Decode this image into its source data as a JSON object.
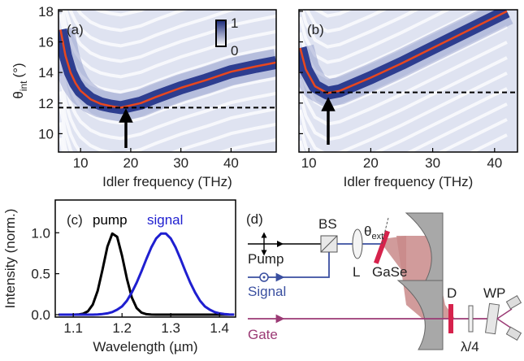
{
  "chart_data": [
    {
      "type": "heatmap",
      "panel_label": "(a)",
      "x_label": "Idler frequency (THz)",
      "y_label": "θ",
      "y_label_sub": "int",
      "y_label_unit": "(°)",
      "x": [
        6,
        7,
        8,
        9,
        10,
        12,
        14,
        16,
        18,
        22,
        25,
        30,
        35,
        40,
        45,
        49
      ],
      "series": [
        {
          "color": "#e8471e",
          "values": [
            16.8,
            15.1,
            14.0,
            13.3,
            12.8,
            12.25,
            11.95,
            11.8,
            11.7,
            12.0,
            12.4,
            13.0,
            13.5,
            14.05,
            14.4,
            14.65
          ]
        }
      ],
      "dashed_line_y": 11.7,
      "xlim": [
        5.6,
        49
      ],
      "ylim": [
        8.8,
        18.1
      ],
      "xticks": [
        10,
        20,
        30,
        40
      ],
      "yticks": [
        10,
        12,
        14,
        16,
        18
      ],
      "colorbar": {
        "max": 1,
        "min": 0
      }
    },
    {
      "type": "heatmap",
      "panel_label": "(b)",
      "x_label": "Idler frequency (THz)",
      "x": [
        8.6,
        9.5,
        11,
        13,
        15,
        20,
        25,
        30,
        35,
        40,
        42
      ],
      "series": [
        {
          "color": "#e8471e",
          "values": [
            15.6,
            14.2,
            13.1,
            12.65,
            12.8,
            13.66,
            14.6,
            15.6,
            16.6,
            17.6,
            18.0
          ]
        }
      ],
      "dashed_line_y": 12.7,
      "xlim": [
        8.4,
        43.7
      ],
      "ylim": [
        8.8,
        18.1
      ],
      "xticks": [
        10,
        20,
        30,
        40
      ],
      "yticks": [
        10,
        12,
        14,
        16,
        18
      ]
    },
    {
      "type": "line",
      "panel_label": "(c)",
      "x_label": "Wavelength (µm)",
      "y_label": "Intensity (norm.)",
      "x": [
        1.07,
        1.08,
        1.09,
        1.1,
        1.11,
        1.12,
        1.13,
        1.14,
        1.15,
        1.16,
        1.17,
        1.18,
        1.19,
        1.2,
        1.21,
        1.22,
        1.23,
        1.24,
        1.25,
        1.26,
        1.27,
        1.28,
        1.29,
        1.3,
        1.31,
        1.32,
        1.33,
        1.34,
        1.35,
        1.36,
        1.37,
        1.38,
        1.39,
        1.4,
        1.41,
        1.42,
        1.43
      ],
      "series": [
        {
          "name": "pump",
          "color": "#000000",
          "values": [
            0,
            0,
            0,
            0,
            0.002,
            0.011,
            0.041,
            0.123,
            0.29,
            0.55,
            0.83,
            0.99,
            0.95,
            0.72,
            0.44,
            0.21,
            0.08,
            0.025,
            0.006,
            0.001,
            0,
            0,
            0,
            0,
            0,
            0,
            0,
            0,
            0,
            0,
            0,
            0,
            0,
            0,
            0,
            0,
            0
          ]
        },
        {
          "name": "signal",
          "color": "#1f1fd0",
          "values": [
            0,
            0,
            0,
            0,
            0,
            0,
            0,
            0,
            0.003,
            0.008,
            0.016,
            0.032,
            0.06,
            0.1,
            0.17,
            0.27,
            0.39,
            0.53,
            0.68,
            0.82,
            0.93,
            0.99,
            0.99,
            0.93,
            0.82,
            0.68,
            0.53,
            0.39,
            0.27,
            0.17,
            0.1,
            0.06,
            0.032,
            0.016,
            0.008,
            0.003,
            0.001
          ]
        }
      ],
      "xlim": [
        1.063,
        1.433
      ],
      "ylim": [
        -0.03,
        1.4
      ],
      "xticks": [
        1.1,
        1.2,
        1.3,
        1.4
      ],
      "yticks": [
        {
          "value": 0,
          "label": "0.0"
        },
        {
          "value": 0.5,
          "label": "0.5"
        },
        {
          "value": 1,
          "label": "1.0"
        }
      ]
    }
  ],
  "diagram": {
    "panel_label": "(d)",
    "bs": "BS",
    "theta": "θ",
    "theta_sub": "ext",
    "pump": "Pump",
    "lens": "L",
    "crystal": "GaSe",
    "signal": "Signal",
    "detector": "D",
    "wp": "WP",
    "waveplate": "λ/4",
    "gate": "Gate"
  }
}
